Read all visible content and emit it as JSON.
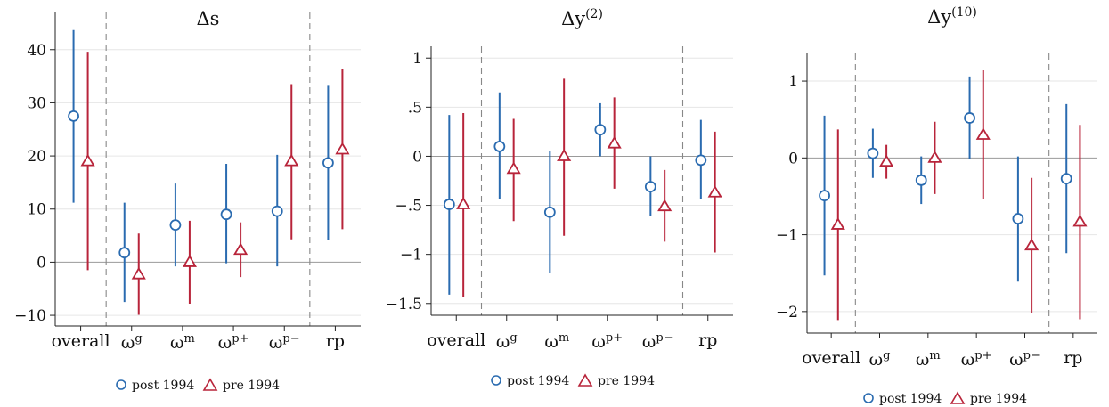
{
  "colors": {
    "post": "#2a6bb0",
    "pre": "#b8243a",
    "axis": "#222222",
    "grid": "#e6e6e6",
    "zero": "#9a9a9a",
    "separator": "#888888"
  },
  "legend": {
    "post": "post 1994",
    "pre": "pre 1994"
  },
  "chart_data": [
    {
      "type": "scatter",
      "title": "Δs",
      "categories": [
        "overall",
        "ω^g",
        "ω^m",
        "ω^p+",
        "ω^p−",
        "rp"
      ],
      "yticks": [
        40,
        30,
        20,
        10,
        0,
        -10
      ],
      "ytick_labels": [
        "40",
        "30",
        "20",
        "10",
        "0",
        "−10"
      ],
      "ylim": [
        -12,
        47
      ],
      "grid": true,
      "legend_position": "bottom",
      "separators_after": [
        0,
        4
      ],
      "series": [
        {
          "name": "post 1994",
          "marker": "circle",
          "values": [
            27.5,
            1.8,
            7.0,
            9.0,
            9.6,
            18.7
          ],
          "lower": [
            11.2,
            -7.5,
            -0.8,
            -0.2,
            -0.8,
            4.2
          ],
          "upper": [
            43.7,
            11.2,
            14.8,
            18.5,
            20.2,
            33.2
          ]
        },
        {
          "name": "pre 1994",
          "marker": "triangle",
          "values": [
            19.0,
            -2.3,
            0.0,
            2.3,
            19.0,
            21.2
          ],
          "lower": [
            -1.5,
            -9.9,
            -7.8,
            -2.8,
            4.3,
            6.2
          ],
          "upper": [
            39.6,
            5.4,
            7.8,
            7.5,
            33.5,
            36.3
          ]
        }
      ]
    },
    {
      "type": "scatter",
      "title": "Δy(2)",
      "categories": [
        "overall",
        "ω^g",
        "ω^m",
        "ω^p+",
        "ω^p−",
        "rp"
      ],
      "yticks": [
        1,
        0.5,
        0,
        -0.5,
        -1,
        -1.5
      ],
      "ytick_labels": [
        "1",
        ".5",
        "0",
        "−.5",
        "−1",
        "−1.5"
      ],
      "ylim": [
        -1.62,
        1.12
      ],
      "grid": true,
      "legend_position": "bottom",
      "separators_after": [
        0,
        4
      ],
      "series": [
        {
          "name": "post 1994",
          "marker": "circle",
          "values": [
            -0.49,
            0.1,
            -0.57,
            0.27,
            -0.31,
            -0.04
          ],
          "lower": [
            -1.41,
            -0.44,
            -1.19,
            0.0,
            -0.61,
            -0.44
          ],
          "upper": [
            0.42,
            0.65,
            0.05,
            0.54,
            0.0,
            0.37
          ]
        },
        {
          "name": "pre 1994",
          "marker": "triangle",
          "values": [
            -0.49,
            -0.13,
            0.0,
            0.13,
            -0.51,
            -0.37
          ],
          "lower": [
            -1.43,
            -0.66,
            -0.81,
            -0.33,
            -0.87,
            -0.98
          ],
          "upper": [
            0.44,
            0.38,
            0.79,
            0.6,
            -0.14,
            0.25
          ]
        }
      ]
    },
    {
      "type": "scatter",
      "title": "Δy(10)",
      "categories": [
        "overall",
        "ω^g",
        "ω^m",
        "ω^p+",
        "ω^p−",
        "rp"
      ],
      "yticks": [
        1,
        0,
        -1,
        -2
      ],
      "ytick_labels": [
        "1",
        "0",
        "−1",
        "−2"
      ],
      "ylim": [
        -2.28,
        1.36
      ],
      "grid": true,
      "legend_position": "bottom",
      "separators_after": [
        0,
        4
      ],
      "series": [
        {
          "name": "post 1994",
          "marker": "circle",
          "values": [
            -0.49,
            0.06,
            -0.29,
            0.52,
            -0.79,
            -0.27
          ],
          "lower": [
            -1.53,
            -0.26,
            -0.6,
            -0.02,
            -1.61,
            -1.24
          ],
          "upper": [
            0.55,
            0.38,
            0.02,
            1.06,
            0.02,
            0.7
          ]
        },
        {
          "name": "pre 1994",
          "marker": "triangle",
          "values": [
            -0.87,
            -0.05,
            0.0,
            0.3,
            -1.14,
            -0.83
          ],
          "lower": [
            -2.11,
            -0.27,
            -0.47,
            -0.54,
            -2.02,
            -2.1
          ],
          "upper": [
            0.37,
            0.17,
            0.47,
            1.14,
            -0.26,
            0.43
          ]
        }
      ]
    }
  ]
}
